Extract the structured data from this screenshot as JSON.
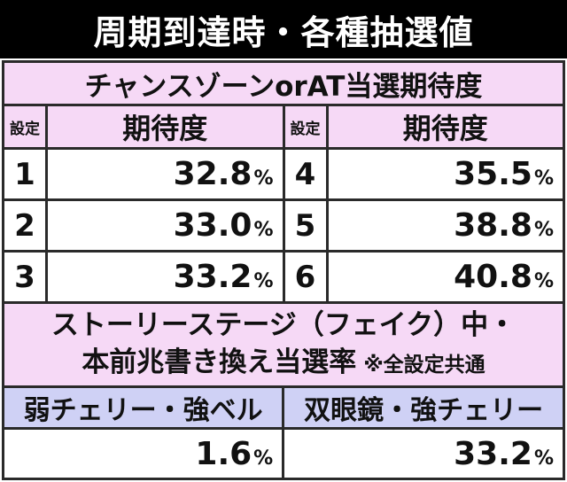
{
  "title": "周期到達時・各種抽選値",
  "table1": {
    "header": "チャンスゾーンorAT当選期待度",
    "col_setting": "設定",
    "col_expect": "期待度",
    "unit": "%",
    "rows": [
      {
        "left_setting": "1",
        "left_value": "32.8",
        "right_setting": "4",
        "right_value": "35.5"
      },
      {
        "left_setting": "2",
        "left_value": "33.0",
        "right_setting": "5",
        "right_value": "38.8"
      },
      {
        "left_setting": "3",
        "left_value": "33.2",
        "right_setting": "6",
        "right_value": "40.8"
      }
    ]
  },
  "table2": {
    "header_line1": "ストーリーステージ（フェイク）中・",
    "header_line2": "本前兆書き換え当選率",
    "header_note": "※全設定共通",
    "col_left": "弱チェリー・強ベル",
    "col_right": "双眼鏡・強チェリー",
    "value_left": "1.6",
    "value_right": "33.2",
    "unit": "%"
  }
}
